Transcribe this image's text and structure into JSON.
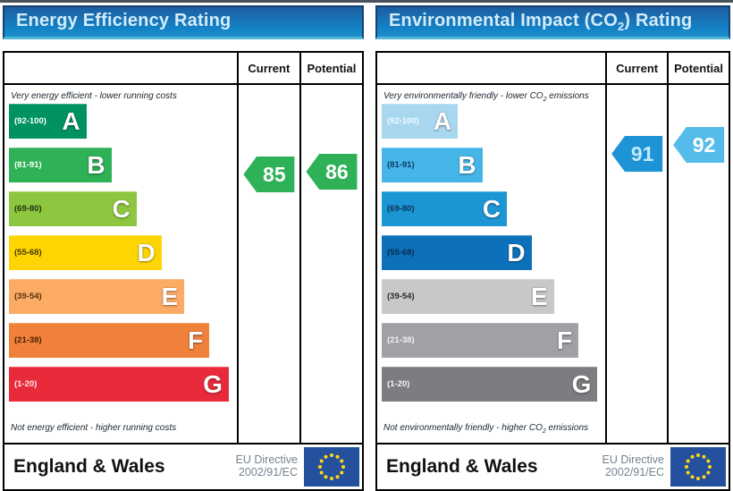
{
  "charts": [
    {
      "title": {
        "pre": "Energy Efficiency Rating",
        "sub": "",
        "post": ""
      },
      "columns": {
        "current": "Current",
        "potential": "Potential"
      },
      "top_label": {
        "pre": "Very energy efficient - lower running costs",
        "sub": "",
        "post": ""
      },
      "bottom_label": {
        "pre": "Not energy efficient - higher running costs",
        "sub": "",
        "post": ""
      },
      "bands": [
        {
          "letter": "A",
          "range_label": "(92-100)",
          "min": 92,
          "max": 100,
          "color": "#009261",
          "label_color": "#ffffff",
          "width_pct": 34
        },
        {
          "letter": "B",
          "range_label": "(81-91)",
          "min": 81,
          "max": 91,
          "color": "#2eb157",
          "label_color": "#ffffff",
          "width_pct": 45
        },
        {
          "letter": "C",
          "range_label": "(69-80)",
          "min": 69,
          "max": 80,
          "color": "#8dc63f",
          "label_color": "#223313",
          "width_pct": 56
        },
        {
          "letter": "D",
          "range_label": "(55-68)",
          "min": 55,
          "max": 68,
          "color": "#fed402",
          "label_color": "#4a3b00",
          "width_pct": 67
        },
        {
          "letter": "E",
          "range_label": "(39-54)",
          "min": 39,
          "max": 54,
          "color": "#fbab64",
          "label_color": "#56330f",
          "width_pct": 77
        },
        {
          "letter": "F",
          "range_label": "(21-38)",
          "min": 21,
          "max": 38,
          "color": "#f0813a",
          "label_color": "#471f05",
          "width_pct": 88
        },
        {
          "letter": "G",
          "range_label": "(1-20)",
          "min": 1,
          "max": 20,
          "color": "#e82a3a",
          "label_color": "#ffe9ec",
          "width_pct": 96.5
        }
      ],
      "current": {
        "value": 85,
        "arrow_color": "#2eb157",
        "text_color": "#ffffff"
      },
      "potential": {
        "value": 86,
        "arrow_color": "#2eb157",
        "text_color": "#ffffff"
      },
      "footer": {
        "region": "England & Wales",
        "directive_line1": "EU Directive",
        "directive_line2": "2002/91/EC"
      }
    },
    {
      "title": {
        "pre": "Environmental Impact (CO",
        "sub": "2",
        "post": ") Rating"
      },
      "columns": {
        "current": "Current",
        "potential": "Potential"
      },
      "top_label": {
        "pre": "Very environmentally friendly - lower CO",
        "sub": "2",
        "post": " emissions"
      },
      "bottom_label": {
        "pre": "Not environmentally friendly - higher CO",
        "sub": "2",
        "post": " emissions"
      },
      "bands": [
        {
          "letter": "A",
          "range_label": "(92-100)",
          "min": 92,
          "max": 100,
          "color": "#a9d7ef",
          "label_color": "#f4fafe",
          "width_pct": 34
        },
        {
          "letter": "B",
          "range_label": "(81-91)",
          "min": 81,
          "max": 91,
          "color": "#45b5e8",
          "label_color": "#0d3c63",
          "width_pct": 45
        },
        {
          "letter": "C",
          "range_label": "(69-80)",
          "min": 69,
          "max": 80,
          "color": "#1c95d4",
          "label_color": "#0a3356",
          "width_pct": 56
        },
        {
          "letter": "D",
          "range_label": "(55-68)",
          "min": 55,
          "max": 68,
          "color": "#0c71ba",
          "label_color": "#0a2b4a",
          "width_pct": 67
        },
        {
          "letter": "E",
          "range_label": "(39-54)",
          "min": 39,
          "max": 54,
          "color": "#c7c8ca",
          "label_color": "#2b2b2d",
          "width_pct": 77
        },
        {
          "letter": "F",
          "range_label": "(21-38)",
          "min": 21,
          "max": 38,
          "color": "#9fa1a4",
          "label_color": "#f1f1f2",
          "width_pct": 88
        },
        {
          "letter": "G",
          "range_label": "(1-20)",
          "min": 1,
          "max": 20,
          "color": "#7c7d80",
          "label_color": "#f5f5f5",
          "width_pct": 96.5
        }
      ],
      "current": {
        "value": 91,
        "arrow_color": "#1e93d6",
        "text_color": "#c2e9fb"
      },
      "potential": {
        "value": 92,
        "arrow_color": "#54bbea",
        "text_color": "#ffffff"
      },
      "footer": {
        "region": "England & Wales",
        "directive_line1": "EU Directive",
        "directive_line2": "2002/91/EC"
      }
    }
  ],
  "chart_data": [
    {
      "type": "bar",
      "title": "Energy Efficiency Rating",
      "categories": [
        "A (92-100)",
        "B (81-91)",
        "C (69-80)",
        "D (55-68)",
        "E (39-54)",
        "F (21-38)",
        "G (1-20)"
      ],
      "band_colors": [
        "#009261",
        "#2eb157",
        "#8dc63f",
        "#fed402",
        "#fbab64",
        "#f0813a",
        "#e82a3a"
      ],
      "series": [
        {
          "name": "Current",
          "values": [
            85
          ]
        },
        {
          "name": "Potential",
          "values": [
            86
          ]
        }
      ],
      "current": 85,
      "potential": 86,
      "current_band": "B",
      "potential_band": "B",
      "scale": [
        1,
        100
      ],
      "top_annotation": "Very energy efficient - lower running costs",
      "bottom_annotation": "Not energy efficient - higher running costs",
      "footer": "England & Wales — EU Directive 2002/91/EC"
    },
    {
      "type": "bar",
      "title": "Environmental Impact (CO2) Rating",
      "categories": [
        "A (92-100)",
        "B (81-91)",
        "C (69-80)",
        "D (55-68)",
        "E (39-54)",
        "F (21-38)",
        "G (1-20)"
      ],
      "band_colors": [
        "#a9d7ef",
        "#45b5e8",
        "#1c95d4",
        "#0c71ba",
        "#c7c8ca",
        "#9fa1a4",
        "#7c7d80"
      ],
      "series": [
        {
          "name": "Current",
          "values": [
            91
          ]
        },
        {
          "name": "Potential",
          "values": [
            92
          ]
        }
      ],
      "current": 91,
      "potential": 92,
      "current_band": "B",
      "potential_band": "A",
      "scale": [
        1,
        100
      ],
      "top_annotation": "Very environmentally friendly - lower CO2 emissions",
      "bottom_annotation": "Not environmentally friendly - higher CO2 emissions",
      "footer": "England & Wales — EU Directive 2002/91/EC"
    }
  ]
}
